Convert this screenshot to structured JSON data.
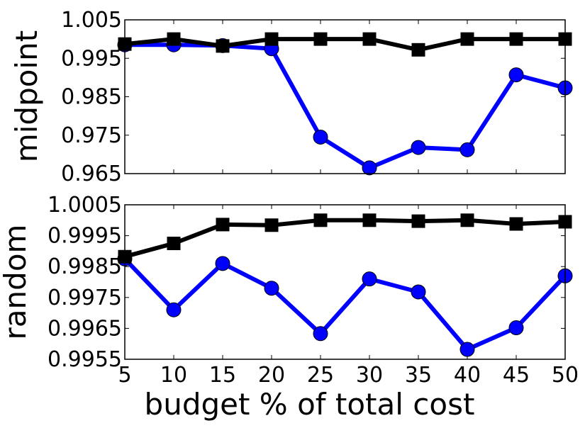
{
  "chart_data": [
    {
      "type": "line",
      "ylabel": "midpoint",
      "xlabel": "",
      "x": [
        5,
        10,
        15,
        20,
        25,
        30,
        35,
        40,
        45,
        50
      ],
      "xlim": [
        5,
        50
      ],
      "xticks": [],
      "ylim": [
        0.965,
        1.005
      ],
      "yticks": [
        "0.965",
        "0.975",
        "0.985",
        "0.995",
        "1.005"
      ],
      "grid": false,
      "series": [
        {
          "color": "#0000ff",
          "marker": "circle",
          "values": [
            0.9985,
            0.9985,
            0.9983,
            0.9975,
            0.9745,
            0.9665,
            0.9718,
            0.9712,
            0.9907,
            0.9873
          ]
        },
        {
          "color": "#000000",
          "marker": "square",
          "values": [
            0.9987,
            1.0,
            0.9982,
            1.0,
            1.0,
            1.0,
            0.9972,
            1.0,
            1.0,
            1.0
          ]
        }
      ]
    },
    {
      "type": "line",
      "ylabel": "random",
      "xlabel": "budget % of total cost",
      "x": [
        5,
        10,
        15,
        20,
        25,
        30,
        35,
        40,
        45,
        50
      ],
      "xlim": [
        5,
        50
      ],
      "xticks": [
        "5",
        "10",
        "15",
        "20",
        "25",
        "30",
        "35",
        "40",
        "45",
        "50"
      ],
      "ylim": [
        0.9955,
        1.0005
      ],
      "yticks": [
        "0.9955",
        "0.9965",
        "0.9975",
        "0.9985",
        "0.9995",
        "1.0005"
      ],
      "grid": false,
      "series": [
        {
          "color": "#0000ff",
          "marker": "circle",
          "values": [
            0.99875,
            0.9971,
            0.9986,
            0.9978,
            0.99633,
            0.9981,
            0.99768,
            0.99582,
            0.99652,
            0.9982
          ]
        },
        {
          "color": "#000000",
          "marker": "square",
          "values": [
            0.99882,
            0.99925,
            0.99986,
            0.99984,
            1.0,
            1.0,
            0.99997,
            1.0,
            0.99988,
            0.99995
          ]
        }
      ]
    }
  ]
}
